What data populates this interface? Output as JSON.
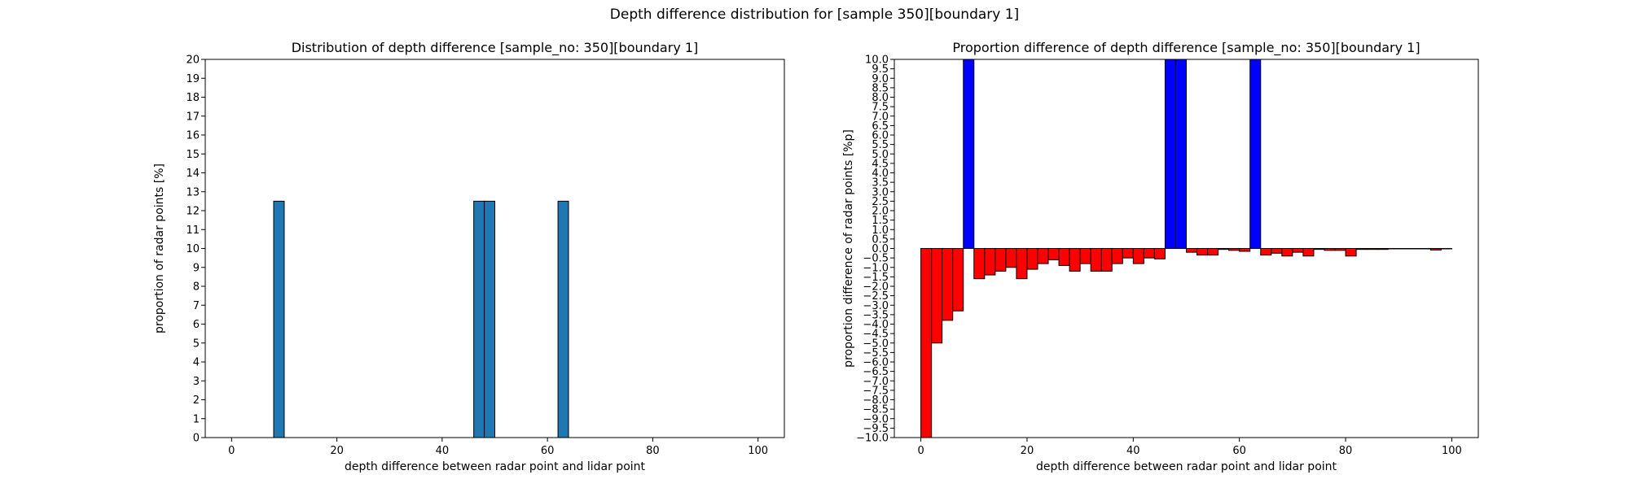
{
  "figure": {
    "suptitle": "Depth difference distribution for [sample 350][boundary 1]"
  },
  "chart_data": [
    {
      "type": "bar",
      "title": "Distribution of depth difference [sample_no: 350][boundary 1]",
      "xlabel": "depth difference between radar point and lidar point",
      "ylabel": "proportion of radar points [%]",
      "xlim": [
        -5,
        105
      ],
      "ylim": [
        0,
        20
      ],
      "xticks": [
        0,
        20,
        40,
        60,
        80,
        100
      ],
      "yticks": [
        0,
        1,
        2,
        3,
        4,
        5,
        6,
        7,
        8,
        9,
        10,
        11,
        12,
        13,
        14,
        15,
        16,
        17,
        18,
        19,
        20
      ],
      "ytick_labels": [
        "0",
        "1",
        "2",
        "3",
        "4",
        "5",
        "6",
        "7",
        "8",
        "9",
        "10",
        "11",
        "12",
        "13",
        "14",
        "15",
        "16",
        "17",
        "18",
        "19",
        "20"
      ],
      "bin_width": 2,
      "bins": [
        {
          "x": 8,
          "value": 12.5
        },
        {
          "x": 46,
          "value": 12.5
        },
        {
          "x": 48,
          "value": 12.5
        },
        {
          "x": 62,
          "value": 12.5
        }
      ],
      "bar_color": "#1f77b4",
      "edge_color": "#000000",
      "grid": false,
      "legend": "none"
    },
    {
      "type": "bar",
      "title": "Proportion difference of depth difference [sample_no: 350][boundary 1]",
      "xlabel": "depth difference between radar point and lidar point",
      "ylabel": "proportion difference of radar points [%p]",
      "xlim": [
        -5,
        105
      ],
      "ylim": [
        -10,
        10
      ],
      "xticks": [
        0,
        20,
        40,
        60,
        80,
        100
      ],
      "yticks": [
        -10,
        -9.5,
        -9,
        -8.5,
        -8,
        -7.5,
        -7,
        -6.5,
        -6,
        -5.5,
        -5,
        -4.5,
        -4,
        -3.5,
        -3,
        -2.5,
        -2,
        -1.5,
        -1,
        -0.5,
        0,
        0.5,
        1,
        1.5,
        2,
        2.5,
        3,
        3.5,
        4,
        4.5,
        5,
        5.5,
        6,
        6.5,
        7,
        7.5,
        8,
        8.5,
        9,
        9.5,
        10
      ],
      "ytick_labels": [
        "−10.0",
        "−9.5",
        "−9.0",
        "−8.5",
        "−8.0",
        "−7.5",
        "−7.0",
        "−6.5",
        "−6.0",
        "−5.5",
        "−5.0",
        "−4.5",
        "−4.0",
        "−3.5",
        "−3.0",
        "−2.5",
        "−2.0",
        "−1.5",
        "−1.0",
        "−0.5",
        "0.0",
        "0.5",
        "1.0",
        "1.5",
        "2.0",
        "2.5",
        "3.0",
        "3.5",
        "4.0",
        "4.5",
        "5.0",
        "5.5",
        "6.0",
        "6.5",
        "7.0",
        "7.5",
        "8.0",
        "8.5",
        "9.0",
        "9.5",
        "10.0"
      ],
      "bin_width": 2,
      "bins": [
        {
          "x": 0,
          "value": -10.0
        },
        {
          "x": 2,
          "value": -5.0
        },
        {
          "x": 4,
          "value": -3.8
        },
        {
          "x": 6,
          "value": -3.3
        },
        {
          "x": 8,
          "value": 10.0
        },
        {
          "x": 10,
          "value": -1.6
        },
        {
          "x": 12,
          "value": -1.4
        },
        {
          "x": 14,
          "value": -1.2
        },
        {
          "x": 16,
          "value": -1.0
        },
        {
          "x": 18,
          "value": -1.6
        },
        {
          "x": 20,
          "value": -1.1
        },
        {
          "x": 22,
          "value": -0.8
        },
        {
          "x": 24,
          "value": -0.6
        },
        {
          "x": 26,
          "value": -0.9
        },
        {
          "x": 28,
          "value": -1.2
        },
        {
          "x": 30,
          "value": -0.8
        },
        {
          "x": 32,
          "value": -1.2
        },
        {
          "x": 34,
          "value": -1.2
        },
        {
          "x": 36,
          "value": -0.8
        },
        {
          "x": 38,
          "value": -0.5
        },
        {
          "x": 40,
          "value": -0.8
        },
        {
          "x": 42,
          "value": -0.5
        },
        {
          "x": 44,
          "value": -0.55
        },
        {
          "x": 46,
          "value": 10.0
        },
        {
          "x": 48,
          "value": 10.0
        },
        {
          "x": 50,
          "value": -0.2
        },
        {
          "x": 52,
          "value": -0.35
        },
        {
          "x": 54,
          "value": -0.35
        },
        {
          "x": 56,
          "value": -0.05
        },
        {
          "x": 58,
          "value": -0.1
        },
        {
          "x": 60,
          "value": -0.15
        },
        {
          "x": 62,
          "value": 10.0
        },
        {
          "x": 64,
          "value": -0.35
        },
        {
          "x": 66,
          "value": -0.25
        },
        {
          "x": 68,
          "value": -0.4
        },
        {
          "x": 70,
          "value": -0.2
        },
        {
          "x": 72,
          "value": -0.4
        },
        {
          "x": 74,
          "value": -0.05
        },
        {
          "x": 76,
          "value": -0.1
        },
        {
          "x": 78,
          "value": -0.1
        },
        {
          "x": 80,
          "value": -0.4
        },
        {
          "x": 82,
          "value": -0.05
        },
        {
          "x": 84,
          "value": -0.05
        },
        {
          "x": 86,
          "value": -0.05
        },
        {
          "x": 88,
          "value": -0.02
        },
        {
          "x": 90,
          "value": -0.02
        },
        {
          "x": 92,
          "value": -0.02
        },
        {
          "x": 94,
          "value": -0.02
        },
        {
          "x": 96,
          "value": -0.08
        },
        {
          "x": 98,
          "value": -0.02
        }
      ],
      "positive_color": "#0000ff",
      "negative_color": "#ff0000",
      "edge_color": "#000000",
      "grid": false,
      "legend": "none"
    }
  ]
}
